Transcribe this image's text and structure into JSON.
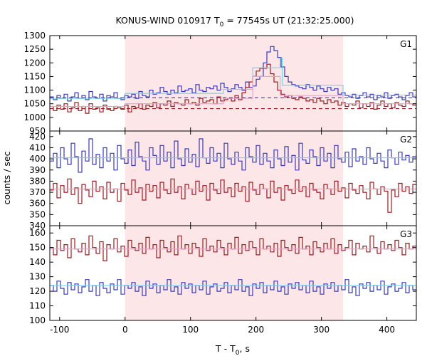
{
  "chart_data": {
    "type": "line",
    "title": {
      "prefix": "KONUS-WIND 010917 T",
      "sub": "0",
      "suffix": " = 77545s UT (21:32:25.000)"
    },
    "xlabel": {
      "prefix": "T - T",
      "sub": "0",
      "suffix": ", s"
    },
    "ylabel": "counts / sec",
    "xlim": [
      -115,
      445
    ],
    "x_ticks": [
      -100,
      0,
      100,
      200,
      300,
      400
    ],
    "x_tick_labels": [
      "-100",
      "0",
      "100",
      "200",
      "300",
      "400"
    ],
    "highlight_interval": [
      0,
      333
    ],
    "highlight_color": "#fde6e8",
    "grid": false,
    "panels": [
      {
        "name": "G1",
        "ylim": [
          950,
          1300
        ],
        "y_ticks": [
          950,
          1000,
          1050,
          1100,
          1150,
          1200,
          1250,
          1300
        ],
        "series": [
          {
            "color": "#3a3ab8",
            "style": "step",
            "values": [
              1075,
              1065,
              1080,
              1070,
              1085,
              1060,
              1075,
              1090,
              1070,
              1080,
              1065,
              1095,
              1075,
              1070,
              1085,
              1060,
              1080,
              1075,
              1090,
              1070,
              1065,
              1080,
              1075,
              1085,
              1070,
              1095,
              1080,
              1075,
              1100,
              1085,
              1090,
              1110,
              1095,
              1085,
              1100,
              1090,
              1115,
              1095,
              1100,
              1105,
              1090,
              1120,
              1100,
              1095,
              1110,
              1105,
              1115,
              1100,
              1125,
              1110,
              1095,
              1105,
              1120,
              1110,
              1100,
              1130,
              1110,
              1115,
              1140,
              1150,
              1200,
              1240,
              1260,
              1245,
              1220,
              1185,
              1150,
              1130,
              1120,
              1115,
              1110,
              1105,
              1120,
              1110,
              1100,
              1115,
              1105,
              1095,
              1110,
              1100,
              1105,
              1085,
              1090,
              1080,
              1075,
              1085,
              1070,
              1080,
              1090,
              1075,
              1085,
              1065,
              1080,
              1075,
              1090,
              1070,
              1080,
              1085,
              1075,
              1065,
              1080,
              1090,
              1075
            ]
          },
          {
            "color": "#a01a22",
            "style": "step",
            "values": [
              1040,
              1025,
              1045,
              1030,
              1050,
              1020,
              1035,
              1055,
              1025,
              1040,
              1015,
              1050,
              1030,
              1035,
              1020,
              1045,
              1030,
              1025,
              1040,
              1035,
              1030,
              1045,
              1020,
              1040,
              1035,
              1050,
              1030,
              1045,
              1040,
              1055,
              1035,
              1050,
              1045,
              1060,
              1040,
              1055,
              1050,
              1045,
              1065,
              1050,
              1055,
              1045,
              1070,
              1055,
              1060,
              1065,
              1050,
              1075,
              1060,
              1065,
              1070,
              1060,
              1080,
              1065,
              1090,
              1110,
              1130,
              1150,
              1170,
              1180,
              1180,
              1195,
              1160,
              1130,
              1100,
              1085,
              1075,
              1080,
              1070,
              1065,
              1075,
              1070,
              1060,
              1065,
              1055,
              1070,
              1060,
              1050,
              1065,
              1055,
              1060,
              1045,
              1055,
              1040,
              1050,
              1045,
              1060,
              1035,
              1050,
              1040,
              1055,
              1030,
              1045,
              1060,
              1040,
              1050,
              1035,
              1055,
              1045,
              1040,
              1060,
              1050,
              1045
            ]
          },
          {
            "color": "#6fd3ea",
            "style": "step-fit",
            "points": [
              [
                -115,
                1070
              ],
              [
                0,
                1070
              ],
              [
                0,
                1088
              ],
              [
                150,
                1088
              ],
              [
                150,
                1103
              ],
              [
                195,
                1103
              ],
              [
                195,
                1182
              ],
              [
                237,
                1182
              ],
              [
                237,
                1218
              ],
              [
                240,
                1218
              ],
              [
                240,
                1118
              ],
              [
                333,
                1118
              ],
              [
                333,
                1082
              ],
              [
                445,
                1082
              ]
            ]
          },
          {
            "color": "#e8a0c8",
            "style": "step-fit",
            "points": [
              [
                -115,
                1040
              ],
              [
                0,
                1040
              ],
              [
                0,
                1050
              ],
              [
                150,
                1050
              ],
              [
                150,
                1070
              ],
              [
                195,
                1070
              ],
              [
                195,
                1150
              ],
              [
                237,
                1150
              ],
              [
                237,
                1080
              ],
              [
                333,
                1080
              ],
              [
                333,
                1050
              ],
              [
                445,
                1050
              ]
            ]
          },
          {
            "color": "#3a3ab8",
            "style": "dashed",
            "points": [
              [
                -115,
                1072
              ],
              [
                445,
                1072
              ]
            ]
          },
          {
            "color": "#a01a22",
            "style": "dashed",
            "points": [
              [
                -115,
                1032
              ],
              [
                445,
                1032
              ]
            ]
          }
        ]
      },
      {
        "name": "G2",
        "ylim": [
          340,
          425
        ],
        "y_ticks": [
          340,
          350,
          360,
          370,
          380,
          390,
          400,
          410,
          420
        ],
        "series": [
          {
            "color": "#3a3ab8",
            "style": "step",
            "values": [
              398,
              405,
              392,
              410,
              400,
              395,
              414,
              402,
              388,
              407,
              398,
              418,
              395,
              404,
              392,
              410,
              398,
              405,
              390,
              412,
              400,
              396,
              408,
              394,
              415,
              402,
              398,
              390,
              410,
              403,
              395,
              412,
              398,
              406,
              392,
              416,
              400,
              394,
              409,
              397,
              404,
              393,
              418,
              401,
              396,
              410,
              398,
              405,
              392,
              414,
              400,
              395,
              406,
              398,
              390,
              410,
              402,
              397,
              412,
              395,
              405,
              398,
              392,
              408,
              400,
              394,
              411,
              397,
              403,
              390,
              414,
              399,
              396,
              408,
              402,
              394,
              410,
              398,
              405,
              392,
              412,
              400,
              397,
              406,
              393,
              409,
              398,
              402,
              395,
              410,
              400,
              396,
              405,
              398,
              392,
              408,
              401,
              395,
              406,
              399,
              403,
              397,
              402
            ]
          },
          {
            "color": "#a01a22",
            "style": "step",
            "values": [
              372,
              378,
              365,
              376,
              370,
              382,
              368,
              374,
              360,
              377,
              372,
              366,
              380,
              371,
              375,
              364,
              379,
              370,
              373,
              362,
              378,
              372,
              368,
              381,
              370,
              374,
              363,
              377,
              371,
              376,
              365,
              379,
              372,
              369,
              382,
              370,
              375,
              364,
              377,
              373,
              368,
              380,
              371,
              376,
              363,
              378,
              372,
              369,
              381,
              370,
              374,
              366,
              378,
              371,
              375,
              362,
              379,
              372,
              368,
              377,
              373,
              365,
              380,
              370,
              374,
              363,
              376,
              372,
              369,
              381,
              371,
              375,
              366,
              378,
              372,
              370,
              364,
              377,
              373,
              368,
              380,
              371,
              374,
              365,
              378,
              372,
              369,
              376,
              370,
              364,
              379,
              373,
              368,
              375,
              371,
              352,
              372,
              366,
              378,
              371,
              375,
              369,
              377
            ]
          },
          {
            "color": "#6fd3ea",
            "style": "step-fit",
            "points": [
              [
                -115,
                401
              ],
              [
                445,
                401
              ]
            ]
          },
          {
            "color": "#e8a0c8",
            "style": "step-fit",
            "points": [
              [
                -115,
                373
              ],
              [
                445,
                373
              ]
            ]
          }
        ]
      },
      {
        "name": "G3",
        "ylim": [
          100,
          165
        ],
        "y_ticks": [
          100,
          110,
          120,
          130,
          140,
          150,
          160
        ],
        "series": [
          {
            "color": "#a01a22",
            "style": "step",
            "values": [
              150,
              145,
              155,
              148,
              152,
              143,
              156,
              149,
              147,
              153,
              145,
              158,
              150,
              146,
              154,
              141,
              152,
              149,
              156,
              147,
              151,
              144,
              155,
              150,
              148,
              153,
              146,
              157,
              149,
              152,
              143,
              155,
              150,
              147,
              154,
              145,
              158,
              149,
              152,
              146,
              153,
              150,
              144,
              156,
              148,
              151,
              147,
              155,
              150,
              145,
              153,
              149,
              157,
              146,
              152,
              148,
              154,
              150,
              145,
              156,
              149,
              151,
              147,
              153,
              144,
              155,
              150,
              148,
              152,
              146,
              157,
              149,
              151,
              145,
              154,
              150,
              147,
              153,
              149,
              156,
              146,
              152,
              148,
              150,
              155,
              145,
              153,
              149,
              151,
              147,
              158,
              150,
              146,
              154,
              149,
              152,
              148,
              155,
              150,
              145,
              153,
              149,
              151
            ]
          },
          {
            "color": "#3a3ab8",
            "style": "step",
            "values": [
              124,
              120,
              127,
              122,
              118,
              126,
              121,
              125,
              119,
              123,
              128,
              120,
              124,
              117,
              126,
              122,
              119,
              125,
              121,
              128,
              118,
              124,
              122,
              126,
              120,
              123,
              117,
              127,
              122,
              125,
              119,
              124,
              121,
              128,
              120,
              123,
              118,
              126,
              122,
              125,
              119,
              124,
              121,
              127,
              118,
              123,
              125,
              120,
              122,
              126,
              119,
              124,
              121,
              128,
              120,
              123,
              117,
              125,
              122,
              126,
              119,
              124,
              121,
              127,
              120,
              123,
              118,
              125,
              122,
              126,
              121,
              124,
              119,
              127,
              120,
              123,
              118,
              125,
              122,
              126,
              120,
              124,
              121,
              128,
              119,
              123,
              117,
              125,
              122,
              126,
              120,
              124,
              121,
              127,
              118,
              123,
              125,
              120,
              122,
              126,
              119,
              124,
              121
            ]
          },
          {
            "color": "#6fd3ea",
            "style": "step-fit",
            "points": [
              [
                -115,
                124
              ],
              [
                445,
                124
              ]
            ]
          },
          {
            "color": "#e8a0c8",
            "style": "step-fit",
            "points": [
              [
                -115,
                149
              ],
              [
                445,
                149
              ]
            ]
          }
        ]
      }
    ]
  }
}
